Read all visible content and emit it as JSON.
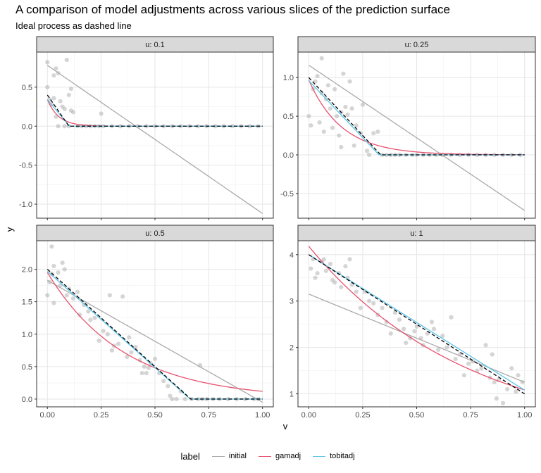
{
  "title": "A comparison of model adjustments across various slices of the prediction surface",
  "subtitle": "Ideal process as dashed line",
  "chart_data": {
    "type": "line",
    "facet_prefix": "u: ",
    "xlabel": "v",
    "ylabel": "y",
    "x_ticks": [
      "0.00",
      "0.25",
      "0.50",
      "0.75",
      "1.00"
    ],
    "xlim": [
      -0.05,
      1.05
    ],
    "legend": {
      "title": "label",
      "position": "bottom",
      "entries": [
        {
          "name": "initial",
          "color": "#aaaaaa"
        },
        {
          "name": "gamadj",
          "color": "#e8506e"
        },
        {
          "name": "tobitadj",
          "color": "#5bc3e8"
        }
      ]
    },
    "ideal_style": "black dashed",
    "panels": [
      {
        "label": "u: 0.1",
        "u": 0.1,
        "ylim": [
          -1.18,
          0.95
        ],
        "y_ticks": [
          "0.5",
          "0.0",
          "-0.5",
          "-1.0"
        ],
        "ideal": {
          "intercept": 0.4,
          "slope": -4.0
        },
        "initial": {
          "intercept": 0.78,
          "slope": -1.9
        },
        "gamadj": {
          "type": "exp",
          "a": 0.34,
          "b": 19
        },
        "tobitadj": {
          "intercept": 0.34,
          "slope": -3.3
        },
        "points": [
          [
            0.0,
            0.82
          ],
          [
            0.0,
            0.5
          ],
          [
            0.01,
            0.34
          ],
          [
            0.02,
            0.28
          ],
          [
            0.03,
            0.36
          ],
          [
            0.03,
            0.65
          ],
          [
            0.04,
            0.74
          ],
          [
            0.04,
            0.12
          ],
          [
            0.05,
            0.0
          ],
          [
            0.05,
            0.68
          ],
          [
            0.06,
            0.32
          ],
          [
            0.07,
            0.25
          ],
          [
            0.08,
            0.0
          ],
          [
            0.08,
            0.22
          ],
          [
            0.09,
            0.85
          ],
          [
            0.1,
            0.0
          ],
          [
            0.1,
            0.4
          ],
          [
            0.11,
            0.2
          ],
          [
            0.11,
            0.48
          ],
          [
            0.12,
            0.18
          ],
          [
            0.14,
            0.0
          ],
          [
            0.16,
            0.0
          ],
          [
            0.18,
            0.0
          ],
          [
            0.2,
            0.0
          ],
          [
            0.22,
            0.0
          ],
          [
            0.24,
            0.0
          ],
          [
            0.25,
            0.16
          ],
          [
            0.26,
            0.0
          ],
          [
            0.3,
            0.0
          ],
          [
            0.34,
            0.0
          ],
          [
            0.38,
            0.0
          ],
          [
            0.42,
            0.0
          ],
          [
            0.46,
            0.0
          ],
          [
            0.5,
            0.0
          ],
          [
            0.54,
            0.0
          ],
          [
            0.58,
            0.0
          ],
          [
            0.62,
            0.0
          ],
          [
            0.66,
            0.0
          ],
          [
            0.7,
            0.0
          ],
          [
            0.74,
            0.0
          ],
          [
            0.78,
            0.0
          ],
          [
            0.82,
            0.0
          ],
          [
            0.86,
            0.0
          ],
          [
            0.9,
            0.0
          ],
          [
            0.94,
            0.0
          ],
          [
            0.98,
            0.0
          ]
        ]
      },
      {
        "label": "u: 0.25",
        "u": 0.25,
        "ylim": [
          -0.82,
          1.33
        ],
        "y_ticks": [
          "1.0",
          "0.5",
          "0.0",
          "-0.5"
        ],
        "ideal": {
          "intercept": 1.0,
          "slope": -3.0
        },
        "initial": {
          "intercept": 1.16,
          "slope": -1.88
        },
        "gamadj": {
          "type": "exp",
          "a": 0.97,
          "b": 6.5
        },
        "tobitadj": {
          "intercept": 0.96,
          "slope": -2.95
        },
        "points": [
          [
            0.0,
            0.5
          ],
          [
            0.01,
            0.38
          ],
          [
            0.02,
            0.85
          ],
          [
            0.03,
            0.95
          ],
          [
            0.04,
            1.02
          ],
          [
            0.05,
            0.42
          ],
          [
            0.06,
            1.25
          ],
          [
            0.06,
            0.8
          ],
          [
            0.07,
            0.3
          ],
          [
            0.08,
            0.72
          ],
          [
            0.09,
            0.9
          ],
          [
            0.1,
            0.6
          ],
          [
            0.11,
            0.35
          ],
          [
            0.12,
            0.85
          ],
          [
            0.13,
            0.5
          ],
          [
            0.14,
            0.25
          ],
          [
            0.15,
            0.1
          ],
          [
            0.15,
            0.55
          ],
          [
            0.16,
            1.05
          ],
          [
            0.17,
            0.62
          ],
          [
            0.18,
            0.52
          ],
          [
            0.19,
            0.95
          ],
          [
            0.2,
            0.6
          ],
          [
            0.21,
            0.12
          ],
          [
            0.22,
            0.38
          ],
          [
            0.24,
            0.28
          ],
          [
            0.25,
            0.65
          ],
          [
            0.27,
            0.05
          ],
          [
            0.28,
            0.0
          ],
          [
            0.3,
            0.28
          ],
          [
            0.32,
            0.3
          ],
          [
            0.34,
            0.0
          ],
          [
            0.36,
            0.0
          ],
          [
            0.38,
            0.0
          ],
          [
            0.4,
            0.0
          ],
          [
            0.42,
            0.0
          ],
          [
            0.45,
            0.0
          ],
          [
            0.48,
            0.0
          ],
          [
            0.5,
            0.0
          ],
          [
            0.53,
            0.0
          ],
          [
            0.56,
            0.0
          ],
          [
            0.59,
            0.0
          ],
          [
            0.62,
            0.0
          ],
          [
            0.66,
            0.0
          ],
          [
            0.7,
            0.0
          ],
          [
            0.74,
            0.0
          ],
          [
            0.78,
            0.0
          ],
          [
            0.82,
            0.0
          ],
          [
            0.86,
            0.0
          ],
          [
            0.9,
            0.0
          ],
          [
            0.94,
            0.0
          ],
          [
            0.98,
            0.0
          ]
        ]
      },
      {
        "label": "u: 0.5",
        "u": 0.5,
        "ylim": [
          -0.12,
          2.44
        ],
        "y_ticks": [
          "2.0",
          "1.5",
          "1.0",
          "0.5",
          "0.0"
        ],
        "ideal": {
          "intercept": 2.0,
          "slope": -3.0
        },
        "initial": {
          "intercept": 1.83,
          "slope": -1.88
        },
        "gamadj": {
          "type": "exp",
          "a": 1.95,
          "b": 2.8
        },
        "tobitadj": {
          "intercept": 1.97,
          "slope": -2.97
        },
        "points": [
          [
            0.0,
            1.6
          ],
          [
            0.01,
            1.8
          ],
          [
            0.02,
            1.93
          ],
          [
            0.02,
            2.35
          ],
          [
            0.03,
            1.48
          ],
          [
            0.03,
            2.05
          ],
          [
            0.05,
            1.95
          ],
          [
            0.06,
            1.75
          ],
          [
            0.07,
            2.1
          ],
          [
            0.08,
            2.0
          ],
          [
            0.09,
            1.6
          ],
          [
            0.1,
            1.7
          ],
          [
            0.12,
            1.55
          ],
          [
            0.14,
            1.65
          ],
          [
            0.15,
            1.3
          ],
          [
            0.17,
            1.45
          ],
          [
            0.19,
            1.35
          ],
          [
            0.2,
            1.22
          ],
          [
            0.22,
            1.25
          ],
          [
            0.24,
            0.9
          ],
          [
            0.26,
            1.05
          ],
          [
            0.28,
            1.0
          ],
          [
            0.29,
            1.6
          ],
          [
            0.3,
            0.75
          ],
          [
            0.31,
            0.82
          ],
          [
            0.33,
            0.85
          ],
          [
            0.35,
            1.58
          ],
          [
            0.37,
            0.65
          ],
          [
            0.38,
            0.95
          ],
          [
            0.39,
            0.72
          ],
          [
            0.41,
            0.8
          ],
          [
            0.43,
            0.6
          ],
          [
            0.44,
            0.4
          ],
          [
            0.45,
            0.5
          ],
          [
            0.46,
            0.4
          ],
          [
            0.47,
            0.48
          ],
          [
            0.48,
            0.55
          ],
          [
            0.5,
            0.62
          ],
          [
            0.52,
            0.4
          ],
          [
            0.54,
            0.28
          ],
          [
            0.56,
            0.2
          ],
          [
            0.57,
            0.05
          ],
          [
            0.58,
            0.0
          ],
          [
            0.6,
            0.0
          ],
          [
            0.62,
            0.12
          ],
          [
            0.64,
            0.0
          ],
          [
            0.67,
            0.0
          ],
          [
            0.7,
            0.0
          ],
          [
            0.71,
            0.52
          ],
          [
            0.72,
            0.0
          ],
          [
            0.74,
            0.0
          ],
          [
            0.77,
            0.0
          ],
          [
            0.8,
            0.0
          ],
          [
            0.84,
            0.0
          ],
          [
            0.88,
            0.0
          ],
          [
            0.92,
            0.0
          ],
          [
            0.96,
            0.0
          ],
          [
            0.98,
            0.0
          ]
        ]
      },
      {
        "label": "u: 1",
        "u": 1,
        "ylim": [
          0.72,
          4.3
        ],
        "y_ticks": [
          "4",
          "3",
          "2",
          "1"
        ],
        "ideal": {
          "intercept": 4.0,
          "slope": -3.0
        },
        "initial": {
          "intercept": 3.15,
          "slope": -1.9
        },
        "gamadj": {
          "type": "exp",
          "a": 4.18,
          "b": 1.35
        },
        "tobitadj": {
          "intercept": 4.0,
          "slope": -2.92
        },
        "points": [
          [
            0.01,
            3.7
          ],
          [
            0.02,
            3.9
          ],
          [
            0.03,
            3.5
          ],
          [
            0.04,
            3.6
          ],
          [
            0.06,
            3.85
          ],
          [
            0.07,
            3.9
          ],
          [
            0.08,
            3.65
          ],
          [
            0.1,
            3.8
          ],
          [
            0.11,
            3.45
          ],
          [
            0.12,
            3.4
          ],
          [
            0.14,
            3.6
          ],
          [
            0.15,
            3.3
          ],
          [
            0.17,
            3.75
          ],
          [
            0.18,
            3.5
          ],
          [
            0.19,
            3.9
          ],
          [
            0.2,
            3.35
          ],
          [
            0.22,
            3.2
          ],
          [
            0.24,
            2.85
          ],
          [
            0.26,
            3.2
          ],
          [
            0.28,
            3.0
          ],
          [
            0.3,
            2.95
          ],
          [
            0.32,
            2.7
          ],
          [
            0.34,
            2.85
          ],
          [
            0.36,
            2.55
          ],
          [
            0.38,
            2.3
          ],
          [
            0.4,
            2.75
          ],
          [
            0.42,
            2.6
          ],
          [
            0.44,
            2.4
          ],
          [
            0.45,
            2.1
          ],
          [
            0.47,
            2.2
          ],
          [
            0.49,
            2.35
          ],
          [
            0.5,
            2.45
          ],
          [
            0.52,
            2.2
          ],
          [
            0.53,
            2.05
          ],
          [
            0.55,
            2.3
          ],
          [
            0.57,
            2.55
          ],
          [
            0.58,
            2.4
          ],
          [
            0.6,
            1.95
          ],
          [
            0.62,
            2.25
          ],
          [
            0.64,
            2.0
          ],
          [
            0.66,
            2.65
          ],
          [
            0.68,
            1.75
          ],
          [
            0.7,
            1.85
          ],
          [
            0.72,
            1.4
          ],
          [
            0.74,
            1.65
          ],
          [
            0.76,
            1.7
          ],
          [
            0.78,
            1.5
          ],
          [
            0.8,
            1.55
          ],
          [
            0.82,
            2.05
          ],
          [
            0.84,
            1.35
          ],
          [
            0.85,
            1.85
          ],
          [
            0.86,
            1.25
          ],
          [
            0.87,
            0.9
          ],
          [
            0.88,
            1.3
          ],
          [
            0.9,
            0.8
          ],
          [
            0.92,
            1.1
          ],
          [
            0.94,
            1.55
          ],
          [
            0.96,
            1.05
          ],
          [
            0.97,
            1.4
          ],
          [
            0.99,
            1.25
          ]
        ]
      }
    ]
  }
}
